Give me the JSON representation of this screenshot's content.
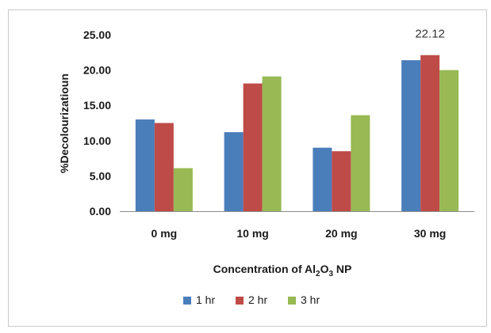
{
  "chart_data": {
    "type": "bar",
    "title": "",
    "categories": [
      "0 mg",
      "10 mg",
      "20 mg",
      "30 mg"
    ],
    "series": [
      {
        "name": "1 hr",
        "values": [
          13.0,
          11.2,
          9.0,
          21.4
        ],
        "color": "#4a7ebb"
      },
      {
        "name": "2 hr",
        "values": [
          12.5,
          18.1,
          8.5,
          22.12
        ],
        "color": "#be4b48"
      },
      {
        "name": "3 hr",
        "values": [
          6.1,
          19.1,
          13.6,
          20.0
        ],
        "color": "#98b954"
      }
    ],
    "ylabel": "%Decolourizatioun",
    "xlabel": {
      "prefix": "Concentration of Al",
      "sub1": "2",
      "mid": "O",
      "sub2": "3",
      "suffix": " NP"
    },
    "ylim": [
      0,
      25
    ],
    "yticks": [
      "0.00",
      "5.00",
      "10.00",
      "15.00",
      "20.00",
      "25.00"
    ],
    "ytick_values": [
      0,
      5,
      10,
      15,
      20,
      25
    ],
    "data_labels": [
      {
        "series": 1,
        "category": 3,
        "text": "22.12"
      }
    ],
    "grid": false,
    "legend_position": "bottom"
  }
}
